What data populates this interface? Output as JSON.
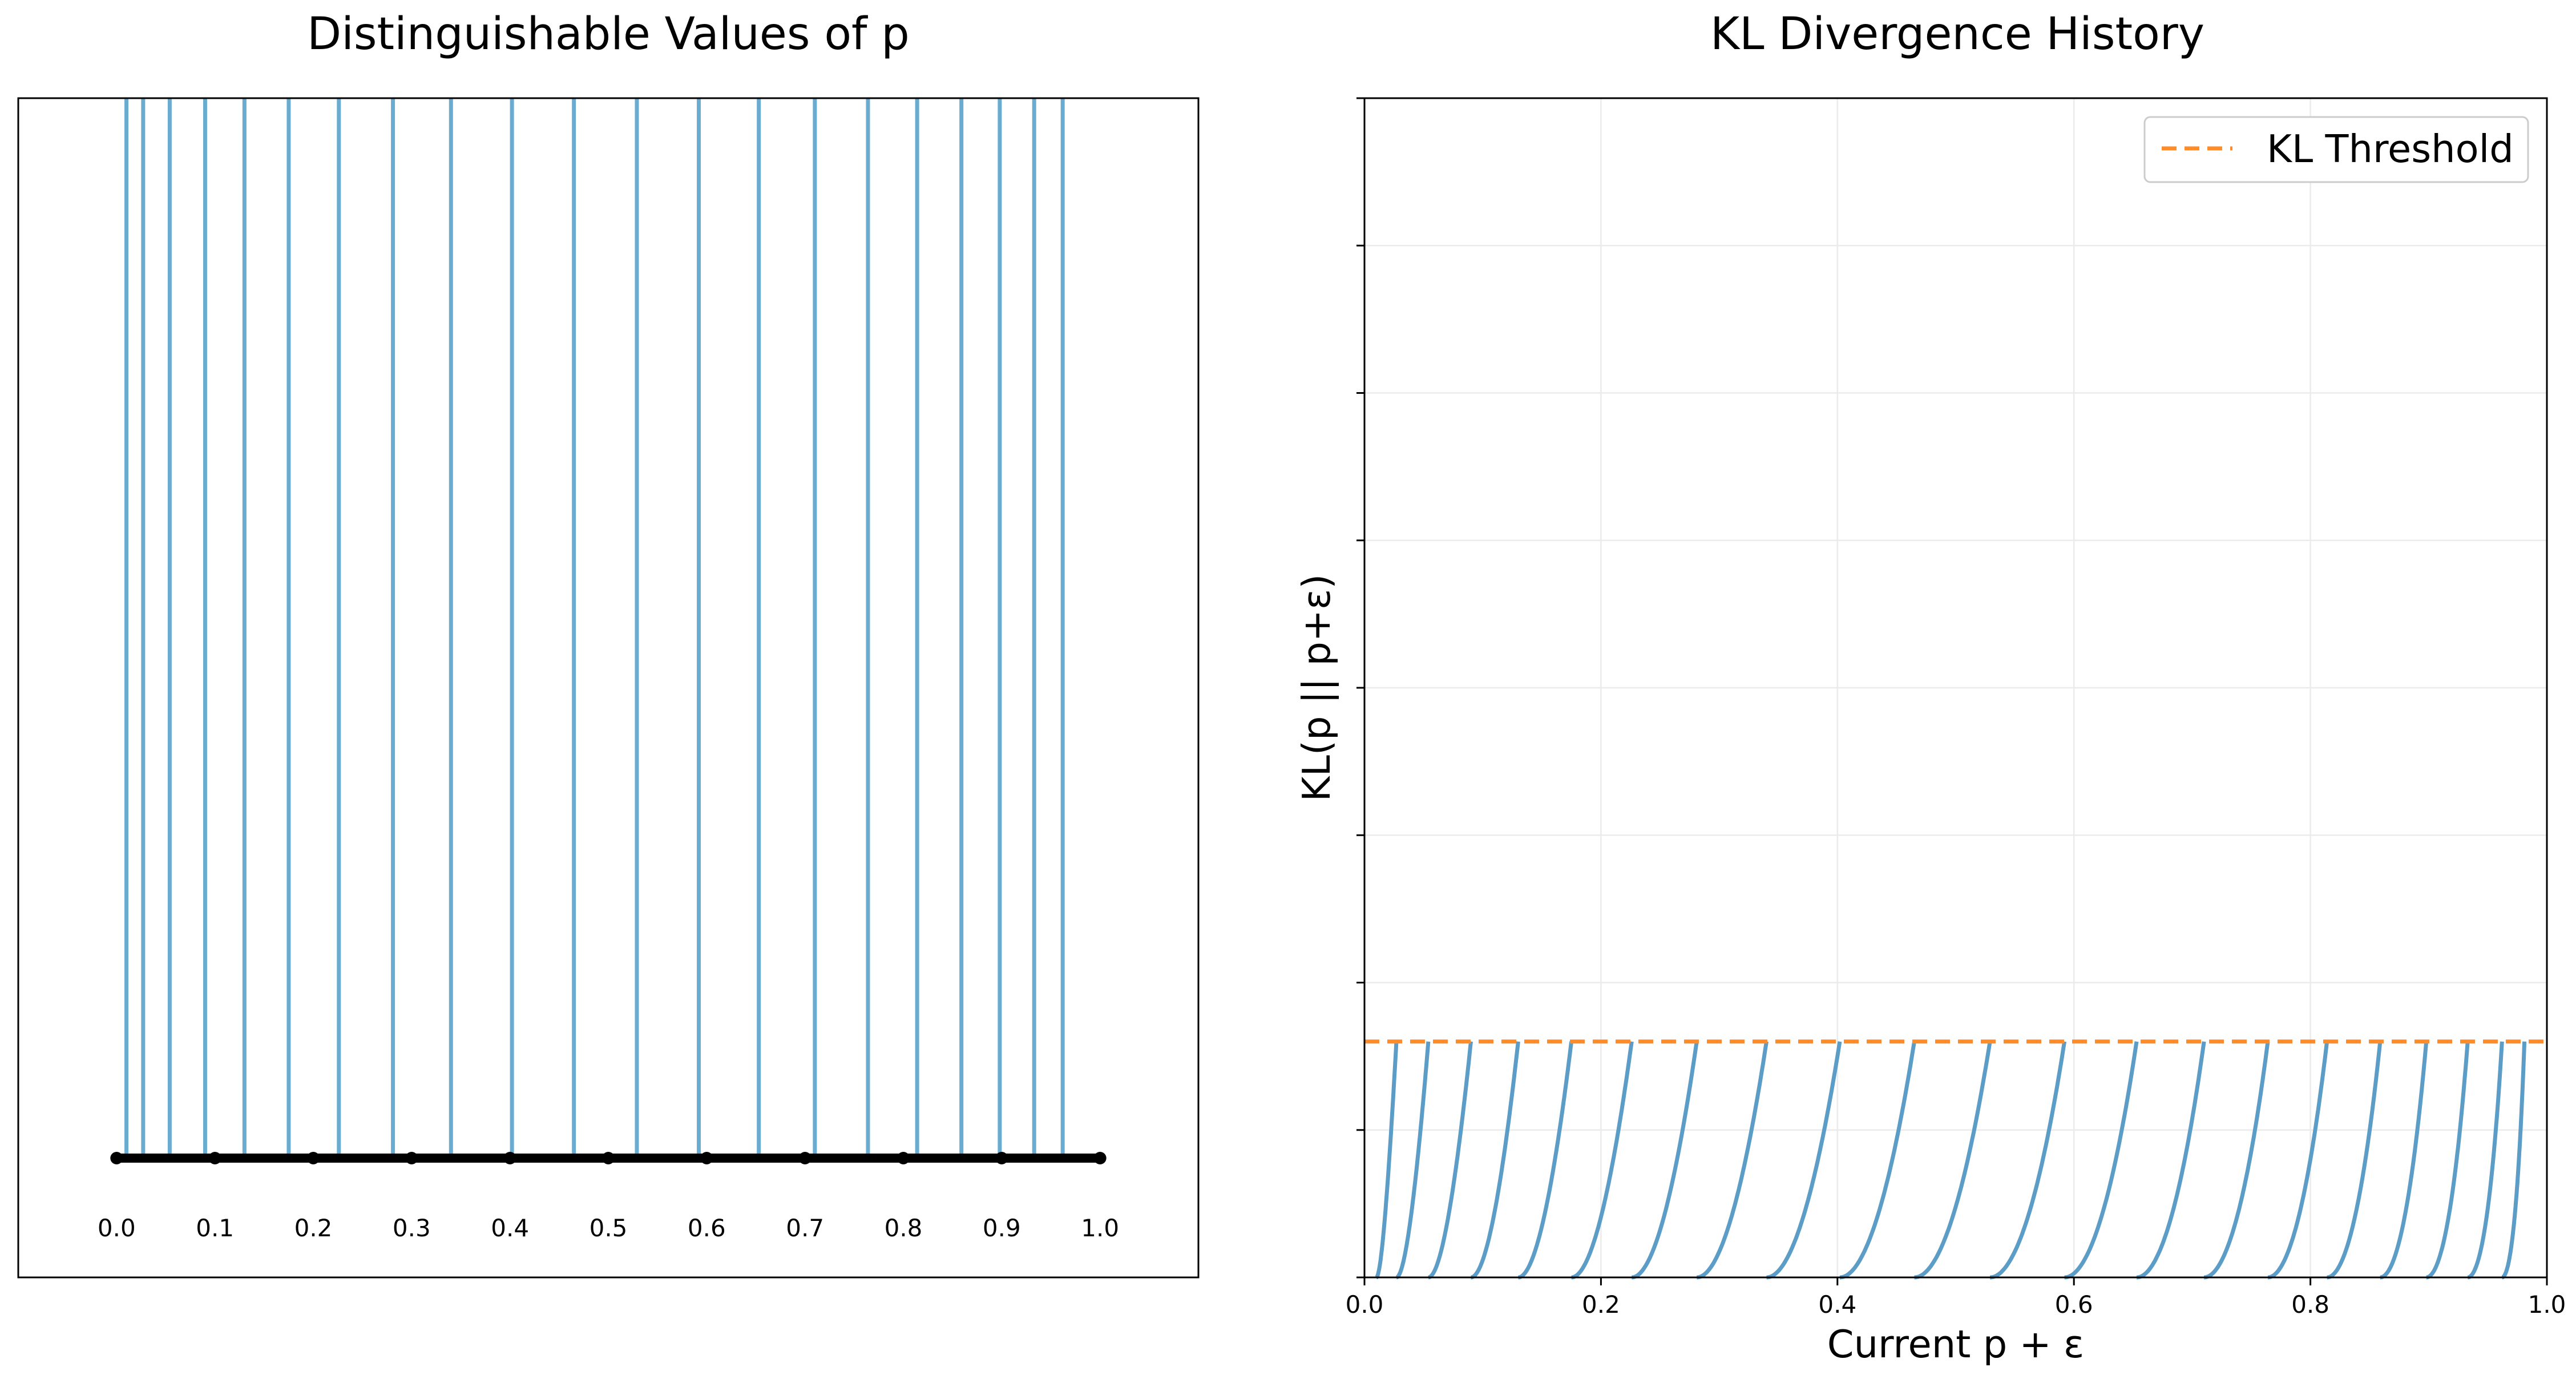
{
  "colors": {
    "lines": "#6aabd0",
    "curves": "#5b9dc6",
    "threshold": "#ff8c28",
    "points": "#000000",
    "frame": "#000000",
    "grid": "#ebebeb"
  },
  "chart_data": [
    {
      "type": "line",
      "title": "Distinguishable Values of p",
      "xlabel": "",
      "ylabel": "",
      "xlim": [
        -0.1,
        1.1
      ],
      "grid": false,
      "vertical_lines_x": [
        0.01,
        0.027,
        0.054,
        0.09,
        0.13,
        0.175,
        0.226,
        0.281,
        0.34,
        0.402,
        0.465,
        0.529,
        0.592,
        0.653,
        0.71,
        0.764,
        0.814,
        0.859,
        0.898,
        0.933,
        0.962
      ],
      "baseline_points_x": [
        0.0,
        0.1,
        0.2,
        0.3,
        0.4,
        0.5,
        0.6,
        0.7,
        0.8,
        0.9,
        1.0
      ],
      "tick_labels": [
        "0.0",
        "0.1",
        "0.2",
        "0.3",
        "0.4",
        "0.5",
        "0.6",
        "0.7",
        "0.8",
        "0.9",
        "1.0"
      ]
    },
    {
      "type": "line",
      "title": "KL Divergence History",
      "xlabel": "Current p + ε",
      "ylabel": "KL(p || p+ε)",
      "xlim": [
        0.0,
        1.0
      ],
      "ylim": [
        0,
        1
      ],
      "y_tick_count": 9,
      "grid": true,
      "legend_position": "top-right",
      "x_ticks": [
        "0.0",
        "0.2",
        "0.4",
        "0.6",
        "0.8",
        "1.0"
      ],
      "threshold": {
        "name": "KL Threshold",
        "y": 0.2
      },
      "curve_start_x": [
        0.01,
        0.027,
        0.054,
        0.09,
        0.13,
        0.175,
        0.226,
        0.281,
        0.34,
        0.402,
        0.465,
        0.529,
        0.592,
        0.653,
        0.71,
        0.764,
        0.814,
        0.859,
        0.898,
        0.933,
        0.962
      ],
      "curve_end_x": [
        0.027,
        0.054,
        0.09,
        0.13,
        0.175,
        0.226,
        0.281,
        0.34,
        0.402,
        0.465,
        0.529,
        0.592,
        0.653,
        0.71,
        0.764,
        0.814,
        0.859,
        0.898,
        0.933,
        0.962,
        0.981
      ]
    }
  ]
}
